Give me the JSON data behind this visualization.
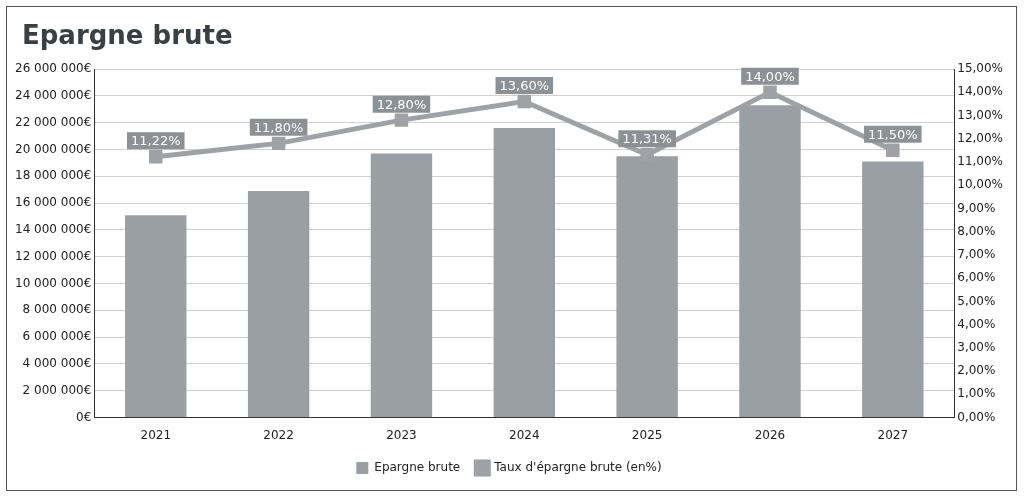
{
  "chart_data": {
    "type": "bar",
    "title": "Epargne brute",
    "categories": [
      "2021",
      "2022",
      "2023",
      "2024",
      "2025",
      "2026",
      "2027"
    ],
    "series": [
      {
        "name": "Epargne brute",
        "color": "#9a9fa4",
        "values": [
          15100000,
          16900000,
          19700000,
          21600000,
          19500000,
          23300000,
          19100000
        ]
      },
      {
        "name": "Taux d'épargne brute (en%)",
        "type": "line",
        "axis": "y2",
        "color": "#9ea2a6",
        "values": [
          11.22,
          11.8,
          12.8,
          13.6,
          11.31,
          14.0,
          11.5
        ],
        "value_labels": [
          "11,22%",
          "11,80%",
          "12,80%",
          "13,60%",
          "11,31%",
          "14,00%",
          "11,50%"
        ]
      }
    ],
    "ylim": [
      0,
      26000000
    ],
    "yticks": [
      {
        "value": 0,
        "label": "0€"
      },
      {
        "value": 2000000,
        "label": "2 000 000€"
      },
      {
        "value": 4000000,
        "label": "4 000 000€"
      },
      {
        "value": 6000000,
        "label": "6 000 000€"
      },
      {
        "value": 8000000,
        "label": "8 000 000€"
      },
      {
        "value": 10000000,
        "label": "10 000 000€"
      },
      {
        "value": 12000000,
        "label": "12 000 000€"
      },
      {
        "value": 14000000,
        "label": "14 000 000€"
      },
      {
        "value": 16000000,
        "label": "16 000 000€"
      },
      {
        "value": 18000000,
        "label": "18 000 000€"
      },
      {
        "value": 20000000,
        "label": "20 000 000€"
      },
      {
        "value": 22000000,
        "label": "22 000 000€"
      },
      {
        "value": 24000000,
        "label": "24 000 000€"
      },
      {
        "value": 26000000,
        "label": "26 000 000€"
      }
    ],
    "y2lim": [
      0,
      15
    ],
    "y2ticks": [
      {
        "value": 0,
        "label": "0,00%"
      },
      {
        "value": 1,
        "label": "1,00%"
      },
      {
        "value": 2,
        "label": "2,00%"
      },
      {
        "value": 3,
        "label": "3,00%"
      },
      {
        "value": 4,
        "label": "4,00%"
      },
      {
        "value": 5,
        "label": "5,00%"
      },
      {
        "value": 6,
        "label": "6,00%"
      },
      {
        "value": 7,
        "label": "7,00%"
      },
      {
        "value": 8,
        "label": "8,00%"
      },
      {
        "value": 9,
        "label": "9,00%"
      },
      {
        "value": 10,
        "label": "10,00%"
      },
      {
        "value": 11,
        "label": "11,00%"
      },
      {
        "value": 12,
        "label": "12,00%"
      },
      {
        "value": 13,
        "label": "13,00%"
      },
      {
        "value": 14,
        "label": "14,00%"
      },
      {
        "value": 15,
        "label": "15,00%"
      }
    ],
    "grid": "y",
    "legend": "bottom",
    "marker": "square",
    "line_style": "solid"
  }
}
